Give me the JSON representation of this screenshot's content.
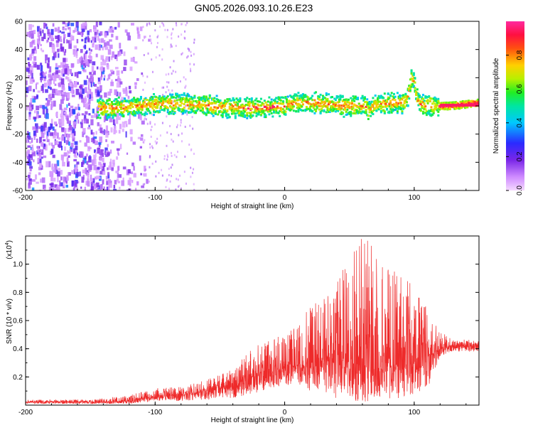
{
  "title": "GN05.2026.093.10.26.E23",
  "chart_data": [
    {
      "type": "heatmap",
      "xlabel": "Height of straight line (km)",
      "ylabel": "Frequency (Hz)",
      "xlim": [
        -200,
        150
      ],
      "ylim": [
        -60,
        60
      ],
      "x_ticks": [
        -200,
        -100,
        0,
        100
      ],
      "x_tick_labels": [
        "-200",
        "-100",
        "0",
        "100"
      ],
      "y_ticks": [
        -60,
        -40,
        -20,
        0,
        20,
        40,
        60
      ],
      "y_tick_labels": [
        "-60",
        "-40",
        "-20",
        "0",
        "20",
        "40",
        "60"
      ],
      "grid": false,
      "colorbar": {
        "label": "Normalized spectral amplitude",
        "range": [
          0.0,
          1.0
        ],
        "ticks": [
          0.0,
          0.2,
          0.4,
          0.6,
          0.8
        ],
        "tick_labels": [
          "0.0",
          "0.2",
          "0.4",
          "0.6",
          "0.8"
        ],
        "colormap": "rainbow (white-violet-blue-cyan-green-yellow-red-magenta)"
      },
      "features": [
        {
          "description": "broadband weak noise",
          "x_range": [
            -200,
            -110
          ],
          "freq_range": [
            -60,
            60
          ],
          "amplitude": 0.1
        },
        {
          "description": "onset of narrow signal band",
          "x": -145
        },
        {
          "description": "narrow band centered near 0 Hz",
          "x_range": [
            -145,
            150
          ],
          "center_freq": 0,
          "half_width": 5
        },
        {
          "description": "frequency spike",
          "x": 98,
          "freq_peak": 22
        },
        {
          "description": "strong steady tone",
          "x_range": [
            120,
            150
          ],
          "freq": 1,
          "amplitude": 0.95
        }
      ]
    },
    {
      "type": "line",
      "xlabel": "Height of straight line (km)",
      "ylabel": "SNR (10 * v/v)",
      "y_scale_note": "(x10",
      "y_scale_exponent": "4",
      "xlim": [
        -200,
        150
      ],
      "ylim": [
        0,
        1.2
      ],
      "x_ticks": [
        -200,
        -100,
        0,
        100
      ],
      "x_tick_labels": [
        "-200",
        "-100",
        "0",
        "100"
      ],
      "y_ticks": [
        0.2,
        0.4,
        0.6,
        0.8,
        1.0
      ],
      "y_tick_labels": [
        "0.2",
        "0.4",
        "0.6",
        "0.8",
        "1.0"
      ],
      "grid": false,
      "series": [
        {
          "name": "SNR",
          "color": "#ee2a2a",
          "envelope": {
            "x": [
              -200,
              -150,
              -120,
              -100,
              -80,
              -60,
              -40,
              -25,
              -10,
              0,
              10,
              20,
              35,
              50,
              60,
              70,
              80,
              95,
              110,
              120,
              130,
              150
            ],
            "base": [
              0.02,
              0.02,
              0.03,
              0.06,
              0.07,
              0.1,
              0.14,
              0.2,
              0.24,
              0.26,
              0.28,
              0.3,
              0.32,
              0.3,
              0.28,
              0.26,
              0.28,
              0.3,
              0.34,
              0.4,
              0.42,
              0.42
            ],
            "peak": [
              0.04,
              0.04,
              0.07,
              0.12,
              0.13,
              0.18,
              0.26,
              0.42,
              0.5,
              0.48,
              0.58,
              0.7,
              0.8,
              1.08,
              1.2,
              1.12,
              1.0,
              0.9,
              0.7,
              0.52,
              0.47,
              0.46
            ],
            "trough": [
              0.01,
              0.01,
              0.01,
              0.03,
              0.03,
              0.04,
              0.05,
              0.08,
              0.12,
              0.14,
              0.14,
              0.1,
              0.06,
              0.02,
              0.02,
              0.04,
              0.04,
              0.06,
              0.1,
              0.34,
              0.38,
              0.38
            ]
          }
        }
      ]
    }
  ]
}
